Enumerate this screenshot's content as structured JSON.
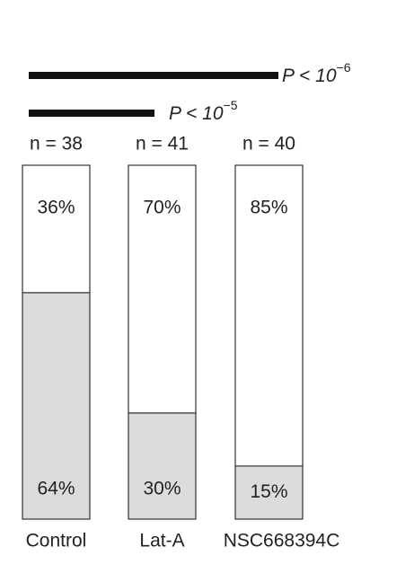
{
  "chart_data": {
    "type": "stacked-bar",
    "categories": [
      "Control",
      "Lat-A",
      "NSC668394C"
    ],
    "n_labels": [
      "n = 38",
      "n = 41",
      "n = 40"
    ],
    "series": [
      {
        "color": "#dcdcdc",
        "values": [
          64,
          30,
          15
        ],
        "value_labels": [
          "64%",
          "30%",
          "15%"
        ]
      },
      {
        "color": "#ffffff",
        "values": [
          36,
          70,
          85
        ],
        "value_labels": [
          "36%",
          "70%",
          "85%"
        ]
      }
    ],
    "annotations": [
      {
        "text": "P < 10",
        "exponent": "−6"
      },
      {
        "text": "P < 10",
        "exponent": "−5"
      }
    ]
  }
}
